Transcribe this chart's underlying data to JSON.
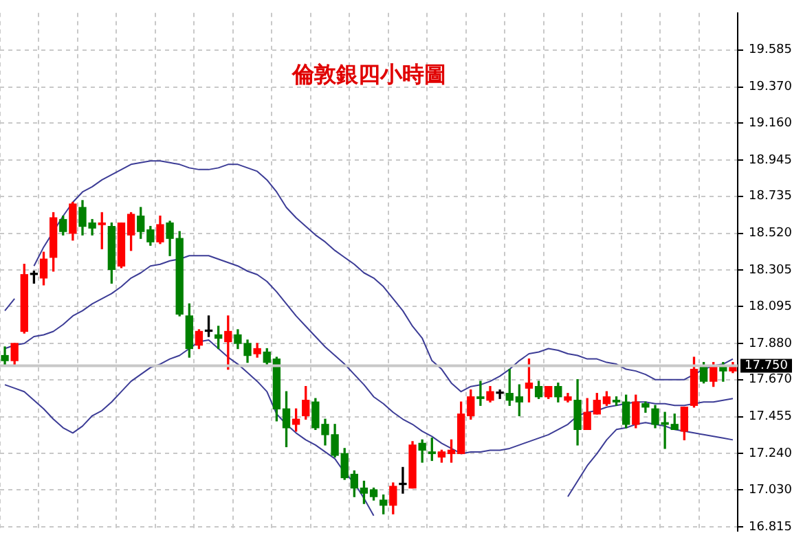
{
  "chart_data": {
    "type": "candlestick",
    "title": "倫敦銀四小時圖",
    "categories": [
      null,
      null,
      null,
      null,
      null,
      null,
      null,
      null,
      null,
      null,
      null,
      null,
      null,
      null,
      null,
      null,
      null,
      null,
      null,
      null,
      null,
      null,
      null,
      null,
      null,
      null,
      null,
      null,
      null,
      null,
      null,
      null,
      null,
      null,
      null,
      null,
      null,
      null,
      null,
      null,
      null,
      null,
      null,
      null,
      null,
      null,
      null,
      null,
      null,
      null,
      null,
      null,
      null,
      null,
      null,
      null,
      null,
      null,
      null,
      null,
      null,
      null,
      null,
      null,
      null,
      null,
      null,
      null,
      null,
      null,
      null,
      null,
      null,
      null,
      null,
      null
    ],
    "ohlc": [
      [
        17.81,
        17.86,
        17.75,
        17.78
      ],
      [
        17.78,
        17.88,
        17.75,
        17.88
      ],
      [
        17.95,
        18.34,
        17.94,
        18.28
      ],
      [
        18.28,
        18.3,
        18.23,
        18.28
      ],
      [
        18.26,
        18.41,
        18.22,
        18.37
      ],
      [
        18.38,
        18.64,
        18.3,
        18.61
      ],
      [
        18.6,
        18.62,
        18.51,
        18.53
      ],
      [
        18.52,
        18.7,
        18.48,
        18.69
      ],
      [
        18.67,
        18.71,
        18.51,
        18.56
      ],
      [
        18.58,
        18.6,
        18.51,
        18.55
      ],
      [
        18.57,
        18.64,
        18.43,
        18.58
      ],
      [
        18.56,
        18.58,
        18.23,
        18.31
      ],
      [
        18.33,
        18.58,
        18.32,
        18.58
      ],
      [
        18.51,
        18.64,
        18.42,
        18.63
      ],
      [
        18.62,
        18.67,
        18.49,
        18.53
      ],
      [
        18.54,
        18.56,
        18.45,
        18.47
      ],
      [
        18.47,
        18.62,
        18.46,
        18.57
      ],
      [
        18.58,
        18.59,
        18.39,
        18.49
      ],
      [
        18.49,
        18.53,
        18.04,
        18.05
      ],
      [
        18.04,
        18.11,
        17.8,
        17.85
      ],
      [
        17.87,
        17.96,
        17.85,
        17.95
      ],
      [
        17.95,
        18.04,
        17.92,
        17.95
      ],
      [
        17.93,
        17.98,
        17.85,
        17.91
      ],
      [
        17.89,
        18.04,
        17.73,
        17.95
      ],
      [
        17.93,
        17.96,
        17.85,
        17.88
      ],
      [
        17.88,
        17.9,
        17.77,
        17.81
      ],
      [
        17.82,
        17.88,
        17.8,
        17.85
      ],
      [
        17.83,
        17.85,
        17.76,
        17.77
      ],
      [
        17.79,
        17.8,
        17.43,
        17.5
      ],
      [
        17.5,
        17.6,
        17.28,
        17.39
      ],
      [
        17.41,
        17.5,
        17.37,
        17.44
      ],
      [
        17.46,
        17.63,
        17.44,
        17.55
      ],
      [
        17.54,
        17.56,
        17.38,
        17.39
      ],
      [
        17.41,
        17.44,
        17.29,
        17.35
      ],
      [
        17.35,
        17.41,
        17.22,
        17.23
      ],
      [
        17.24,
        17.27,
        17.09,
        17.1
      ],
      [
        17.12,
        17.14,
        16.99,
        17.04
      ],
      [
        17.04,
        17.08,
        16.95,
        17.01
      ],
      [
        17.03,
        17.04,
        16.97,
        16.99
      ],
      [
        16.97,
        17.0,
        16.89,
        16.94
      ],
      [
        16.94,
        17.07,
        16.89,
        17.05
      ],
      [
        17.06,
        17.16,
        17.01,
        17.06
      ],
      [
        17.04,
        17.31,
        17.04,
        17.29
      ],
      [
        17.3,
        17.32,
        17.19,
        17.26
      ],
      [
        17.25,
        17.33,
        17.2,
        17.24
      ],
      [
        17.22,
        17.26,
        17.19,
        17.25
      ],
      [
        17.24,
        17.32,
        17.19,
        17.26
      ],
      [
        17.24,
        17.54,
        17.24,
        17.47
      ],
      [
        17.46,
        17.61,
        17.44,
        17.57
      ],
      [
        17.57,
        17.66,
        17.52,
        17.56
      ],
      [
        17.55,
        17.63,
        17.54,
        17.6
      ],
      [
        17.59,
        17.61,
        17.56,
        17.59
      ],
      [
        17.59,
        17.73,
        17.52,
        17.55
      ],
      [
        17.57,
        17.64,
        17.46,
        17.54
      ],
      [
        17.62,
        17.79,
        17.54,
        17.65
      ],
      [
        17.63,
        17.66,
        17.56,
        17.57
      ],
      [
        17.57,
        17.63,
        17.56,
        17.63
      ],
      [
        17.63,
        17.65,
        17.54,
        17.57
      ],
      [
        17.55,
        17.59,
        17.54,
        17.57
      ],
      [
        17.55,
        17.67,
        17.29,
        17.38
      ],
      [
        17.38,
        17.56,
        17.38,
        17.48
      ],
      [
        17.47,
        17.59,
        17.47,
        17.55
      ],
      [
        17.53,
        17.6,
        17.52,
        17.57
      ],
      [
        17.55,
        17.57,
        17.52,
        17.54
      ],
      [
        17.54,
        17.58,
        17.39,
        17.41
      ],
      [
        17.41,
        17.58,
        17.39,
        17.54
      ],
      [
        17.53,
        17.54,
        17.48,
        17.51
      ],
      [
        17.5,
        17.52,
        17.39,
        17.41
      ],
      [
        17.42,
        17.48,
        17.27,
        17.41
      ],
      [
        17.41,
        17.47,
        17.38,
        17.38
      ],
      [
        17.37,
        17.51,
        17.32,
        17.51
      ],
      [
        17.52,
        17.8,
        17.51,
        17.73
      ],
      [
        17.75,
        17.77,
        17.65,
        17.66
      ],
      [
        17.66,
        17.77,
        17.63,
        17.75
      ],
      [
        17.75,
        17.77,
        17.66,
        17.72
      ],
      [
        17.72,
        17.77,
        17.71,
        17.75
      ]
    ],
    "colors": [
      "#008000",
      "#ff0000",
      "#ff0000",
      "#000000",
      "#ff0000",
      "#ff0000",
      "#008000",
      "#ff0000",
      "#008000",
      "#008000",
      "#ff0000",
      "#008000",
      "#ff0000",
      "#ff0000",
      "#008000",
      "#008000",
      "#ff0000",
      "#008000",
      "#008000",
      "#008000",
      "#ff0000",
      "#000000",
      "#008000",
      "#ff0000",
      "#008000",
      "#008000",
      "#ff0000",
      "#008000",
      "#008000",
      "#008000",
      "#ff0000",
      "#ff0000",
      "#008000",
      "#008000",
      "#008000",
      "#008000",
      "#008000",
      "#008000",
      "#008000",
      "#008000",
      "#ff0000",
      "#000000",
      "#ff0000",
      "#008000",
      "#008000",
      "#ff0000",
      "#ff0000",
      "#ff0000",
      "#ff0000",
      "#008000",
      "#ff0000",
      "#000000",
      "#008000",
      "#008000",
      "#ff0000",
      "#008000",
      "#ff0000",
      "#008000",
      "#ff0000",
      "#008000",
      "#ff0000",
      "#ff0000",
      "#ff0000",
      "#008000",
      "#008000",
      "#ff0000",
      "#008000",
      "#008000",
      "#008000",
      "#008000",
      "#ff0000",
      "#ff0000",
      "#008000",
      "#ff0000",
      "#008000",
      "#ff0000"
    ],
    "series": [
      {
        "type": "line",
        "color": "#3c3c96",
        "values": [
          18.07,
          18.14,
          null,
          18.33,
          18.44,
          18.53,
          18.62,
          18.7,
          18.76,
          18.79,
          18.83,
          18.86,
          18.89,
          18.92,
          18.93,
          18.94,
          18.94,
          18.93,
          18.92,
          18.9,
          18.89,
          18.89,
          18.9,
          18.92,
          18.92,
          18.9,
          18.88,
          18.83,
          18.76,
          18.67,
          18.61,
          18.56,
          18.51,
          18.47,
          18.42,
          18.38,
          18.34,
          18.29,
          18.26,
          18.21,
          18.14,
          18.07,
          17.98,
          17.91,
          17.78,
          17.73,
          17.65,
          17.6,
          17.63,
          17.64,
          17.66,
          17.69,
          17.73,
          17.78,
          17.82,
          17.83,
          17.85,
          17.84,
          17.82,
          17.81,
          17.79,
          17.79,
          17.77,
          17.76,
          17.73,
          17.72,
          17.7,
          17.67,
          17.67,
          17.67,
          17.67,
          17.7,
          17.73,
          17.75,
          17.76,
          17.79
        ]
      },
      {
        "type": "line",
        "color": "#3c3c96",
        "values": [
          17.85,
          17.87,
          17.88,
          17.92,
          17.93,
          17.95,
          17.99,
          18.04,
          18.07,
          18.11,
          18.14,
          18.17,
          18.21,
          18.26,
          18.29,
          18.33,
          18.34,
          18.36,
          18.37,
          18.39,
          18.39,
          18.39,
          18.37,
          18.35,
          18.33,
          18.3,
          18.28,
          18.24,
          18.18,
          18.11,
          18.04,
          17.98,
          17.92,
          17.86,
          17.81,
          17.76,
          17.7,
          17.64,
          17.57,
          17.53,
          17.48,
          17.44,
          17.41,
          17.37,
          17.34,
          17.3,
          17.27,
          17.24,
          17.25,
          17.25,
          17.26,
          17.26,
          17.27,
          17.29,
          17.31,
          17.33,
          17.35,
          17.38,
          17.41,
          17.46,
          17.48,
          17.49,
          17.51,
          17.52,
          17.53,
          17.54,
          17.54,
          17.53,
          17.53,
          17.52,
          17.52,
          17.53,
          17.54,
          17.54,
          17.55,
          17.56
        ]
      },
      {
        "type": "line",
        "color": "#3c3c96",
        "values": [
          17.64,
          17.62,
          17.6,
          17.55,
          17.5,
          17.44,
          17.39,
          17.36,
          17.4,
          17.46,
          17.49,
          17.54,
          17.6,
          17.66,
          17.7,
          17.74,
          17.76,
          17.79,
          17.81,
          17.85,
          17.89,
          17.9,
          17.85,
          17.8,
          17.76,
          17.71,
          17.66,
          17.6,
          17.47,
          17.41,
          17.36,
          17.32,
          17.29,
          17.25,
          17.21,
          17.13,
          17.07,
          16.98,
          16.88,
          null,
          null,
          null,
          null,
          null,
          null,
          null,
          null,
          null,
          null,
          null,
          null,
          null,
          null,
          null,
          null,
          null,
          null,
          null,
          16.99,
          17.08,
          17.17,
          17.24,
          17.32,
          17.38,
          17.39,
          17.41,
          17.42,
          17.41,
          17.4,
          17.38,
          17.37,
          17.36,
          17.35,
          17.34,
          17.33,
          17.32
        ]
      }
    ],
    "ylim": [
      16.79,
      19.8
    ],
    "yticks": [
      16.815,
      {
        "value": 17.03,
        "label": "17.030"
      },
      {
        "value": 17.24,
        "label": "17.240"
      },
      17.455,
      {
        "value": 17.67,
        "label": "17.670"
      },
      {
        "value": 17.88,
        "label": "17.880"
      },
      18.095,
      18.305,
      {
        "value": 18.52,
        "label": "18.520"
      },
      18.735,
      18.945,
      {
        "value": 19.16,
        "label": "19.160"
      },
      {
        "value": 19.37,
        "label": "19.370"
      },
      19.585
    ],
    "ref_lines": [
      {
        "axis": "y",
        "value": 17.75,
        "label": "17.750",
        "color": "#c8c8c8"
      }
    ],
    "grid": true,
    "legend": false,
    "tick_labels": "y",
    "marker": "none",
    "line_style": "solid"
  }
}
